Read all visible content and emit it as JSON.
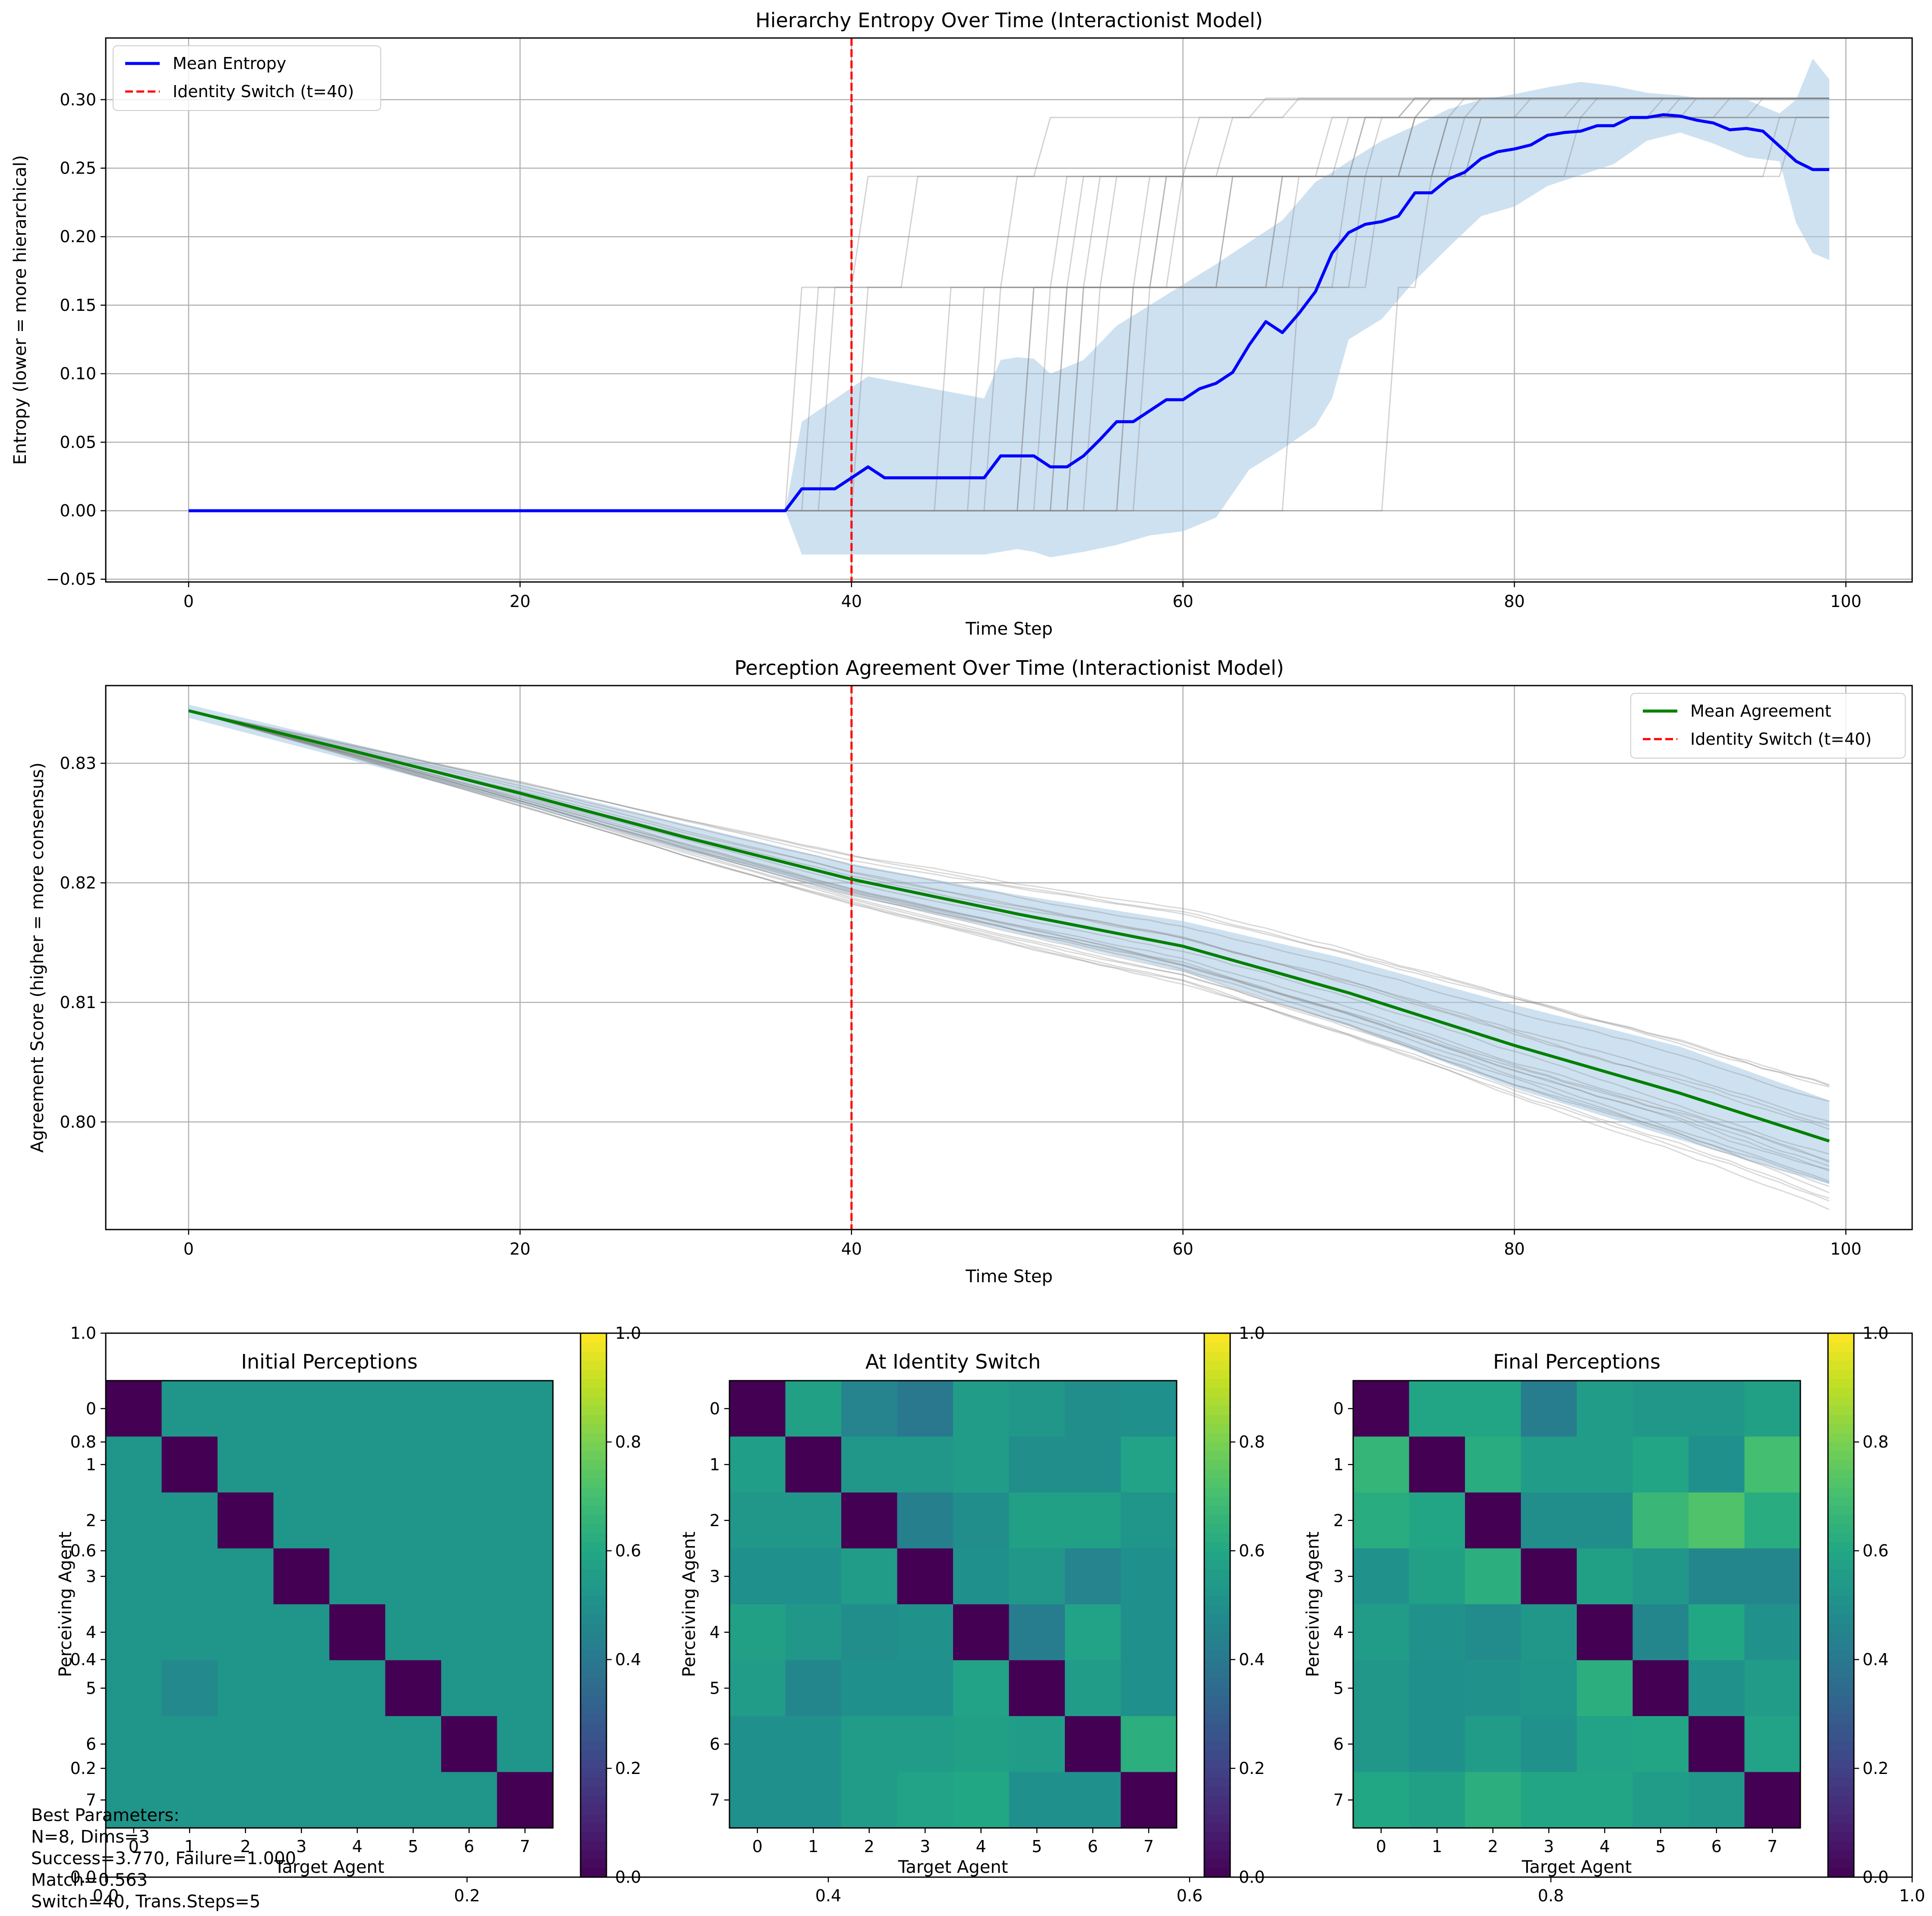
{
  "chart_data": [
    {
      "type": "line",
      "title": "Hierarchy Entropy Over Time (Interactionist Model)",
      "xlabel": "Time Step",
      "ylabel": "Entropy (lower = more hierarchical)",
      "xlim": [
        -5,
        104
      ],
      "ylim": [
        -0.052,
        0.345
      ],
      "xticks": [
        "0",
        "20",
        "40",
        "60",
        "80",
        "100"
      ],
      "yticks": [
        "-0.05",
        "0.00",
        "0.05",
        "0.10",
        "0.15",
        "0.20",
        "0.25",
        "0.30"
      ],
      "grid": true,
      "legend_position": "top-left",
      "legend": [
        "Mean Entropy",
        "Identity Switch (t=40)"
      ],
      "vline": {
        "x": 40,
        "label": "Identity Switch (t=40)",
        "color": "#ff0000"
      },
      "series": [
        {
          "name": "Mean Entropy",
          "color": "#0000ff",
          "x": [
            0,
            36,
            37,
            38,
            39,
            40,
            41,
            42,
            43,
            44,
            45,
            46,
            47,
            48,
            49,
            50,
            51,
            52,
            53,
            54,
            55,
            56,
            57,
            58,
            59,
            60,
            61,
            62,
            63,
            64,
            65,
            66,
            67,
            68,
            69,
            70,
            71,
            72,
            73,
            74,
            75,
            76,
            77,
            78,
            79,
            80,
            81,
            82,
            83,
            84,
            85,
            86,
            87,
            88,
            89,
            90,
            91,
            92,
            93,
            94,
            95,
            96,
            97,
            98,
            99
          ],
          "y": [
            0.0,
            0.0,
            0.016,
            0.016,
            0.016,
            0.024,
            0.032,
            0.024,
            0.024,
            0.024,
            0.024,
            0.024,
            0.024,
            0.024,
            0.04,
            0.04,
            0.04,
            0.032,
            0.032,
            0.04,
            0.052,
            0.065,
            0.065,
            0.073,
            0.081,
            0.081,
            0.089,
            0.093,
            0.101,
            0.121,
            0.138,
            0.13,
            0.144,
            0.16,
            0.188,
            0.203,
            0.209,
            0.211,
            0.215,
            0.232,
            0.232,
            0.242,
            0.247,
            0.257,
            0.262,
            0.264,
            0.267,
            0.274,
            0.276,
            0.277,
            0.281,
            0.281,
            0.287,
            0.287,
            0.289,
            0.288,
            0.285,
            0.283,
            0.278,
            0.279,
            0.277,
            0.266,
            0.255,
            0.249,
            0.249
          ]
        }
      ],
      "band": {
        "color": "#a6c8e3",
        "x": [
          0,
          36,
          37,
          41,
          48,
          49,
          50,
          51,
          52,
          54,
          56,
          58,
          60,
          62,
          64,
          66,
          68,
          69,
          70,
          72,
          74,
          76,
          78,
          80,
          82,
          84,
          86,
          88,
          90,
          92,
          94,
          96,
          97,
          98,
          99
        ],
        "upper": [
          0.0,
          0.0,
          0.065,
          0.098,
          0.082,
          0.11,
          0.112,
          0.111,
          0.1,
          0.11,
          0.135,
          0.15,
          0.165,
          0.18,
          0.196,
          0.212,
          0.24,
          0.247,
          0.255,
          0.27,
          0.281,
          0.293,
          0.3,
          0.304,
          0.309,
          0.313,
          0.31,
          0.305,
          0.303,
          0.3,
          0.3,
          0.29,
          0.3,
          0.33,
          0.315
        ],
        "lower": [
          0.0,
          0.0,
          -0.032,
          -0.032,
          -0.032,
          -0.03,
          -0.028,
          -0.03,
          -0.034,
          -0.03,
          -0.025,
          -0.018,
          -0.015,
          -0.005,
          0.03,
          0.045,
          0.062,
          0.082,
          0.125,
          0.14,
          0.168,
          0.192,
          0.215,
          0.222,
          0.237,
          0.245,
          0.253,
          0.27,
          0.276,
          0.268,
          0.258,
          0.255,
          0.21,
          0.188,
          0.183
        ]
      }
    },
    {
      "type": "line",
      "title": "Perception Agreement Over Time (Interactionist Model)",
      "xlabel": "Time Step",
      "ylabel": "Agreement Score (higher = more consensus)",
      "xlim": [
        -5,
        104
      ],
      "ylim": [
        0.791,
        0.8365
      ],
      "xticks": [
        "0",
        "20",
        "40",
        "60",
        "80",
        "100"
      ],
      "yticks": [
        "0.80",
        "0.81",
        "0.82",
        "0.83"
      ],
      "grid": true,
      "legend_position": "top-right",
      "legend": [
        "Mean Agreement",
        "Identity Switch (t=40)"
      ],
      "vline": {
        "x": 40,
        "label": "Identity Switch (t=40)",
        "color": "#ff0000"
      },
      "series": [
        {
          "name": "Mean Agreement",
          "color": "#008000",
          "x": [
            0,
            10,
            20,
            30,
            40,
            50,
            60,
            70,
            80,
            90,
            99
          ],
          "y": [
            0.8344,
            0.831,
            0.8275,
            0.8238,
            0.8203,
            0.8174,
            0.8147,
            0.8108,
            0.8064,
            0.8024,
            0.7984
          ]
        }
      ],
      "band": {
        "color": "#a6c8e3",
        "x": [
          0,
          10,
          20,
          30,
          40,
          50,
          60,
          70,
          80,
          90,
          99
        ],
        "upper": [
          0.8349,
          0.8316,
          0.8283,
          0.8249,
          0.8216,
          0.819,
          0.8168,
          0.8136,
          0.8098,
          0.8063,
          0.8018
        ],
        "lower": [
          0.8338,
          0.8302,
          0.8266,
          0.8227,
          0.819,
          0.8158,
          0.8126,
          0.808,
          0.8028,
          0.7985,
          0.7948
        ]
      }
    },
    {
      "type": "heatmap",
      "title": "Initial Perceptions",
      "xlabel": "Target Agent",
      "ylabel": "Perceiving Agent",
      "ticks": [
        "0",
        "1",
        "2",
        "3",
        "4",
        "5",
        "6",
        "7"
      ],
      "colorbar": {
        "min": 0.0,
        "max": 1.0,
        "ticks": [
          "0.0",
          "0.2",
          "0.4",
          "0.6",
          "0.8",
          "1.0"
        ],
        "colormap": "viridis"
      },
      "values": [
        [
          0.0,
          0.52,
          0.52,
          0.52,
          0.52,
          0.52,
          0.52,
          0.52
        ],
        [
          0.52,
          0.0,
          0.52,
          0.52,
          0.52,
          0.52,
          0.52,
          0.52
        ],
        [
          0.52,
          0.52,
          0.0,
          0.52,
          0.52,
          0.52,
          0.52,
          0.52
        ],
        [
          0.52,
          0.52,
          0.52,
          0.0,
          0.52,
          0.52,
          0.52,
          0.52
        ],
        [
          0.52,
          0.52,
          0.52,
          0.52,
          0.0,
          0.52,
          0.52,
          0.52
        ],
        [
          0.52,
          0.47,
          0.52,
          0.52,
          0.52,
          0.0,
          0.52,
          0.52
        ],
        [
          0.52,
          0.52,
          0.52,
          0.52,
          0.52,
          0.52,
          0.0,
          0.52
        ],
        [
          0.52,
          0.52,
          0.52,
          0.52,
          0.52,
          0.52,
          0.52,
          0.0
        ]
      ]
    },
    {
      "type": "heatmap",
      "title": "At Identity Switch",
      "xlabel": "Target Agent",
      "ylabel": "Perceiving Agent",
      "ticks": [
        "0",
        "1",
        "2",
        "3",
        "4",
        "5",
        "6",
        "7"
      ],
      "colorbar": {
        "min": 0.0,
        "max": 1.0,
        "ticks": [
          "0.0",
          "0.2",
          "0.4",
          "0.6",
          "0.8",
          "1.0"
        ],
        "colormap": "viridis"
      },
      "values": [
        [
          0.0,
          0.57,
          0.45,
          0.4,
          0.55,
          0.53,
          0.49,
          0.5
        ],
        [
          0.56,
          0.0,
          0.53,
          0.53,
          0.55,
          0.49,
          0.49,
          0.58
        ],
        [
          0.53,
          0.53,
          0.0,
          0.43,
          0.49,
          0.57,
          0.57,
          0.52
        ],
        [
          0.5,
          0.5,
          0.55,
          0.0,
          0.5,
          0.53,
          0.45,
          0.5
        ],
        [
          0.57,
          0.53,
          0.49,
          0.51,
          0.0,
          0.42,
          0.58,
          0.5
        ],
        [
          0.55,
          0.46,
          0.5,
          0.5,
          0.58,
          0.0,
          0.55,
          0.5
        ],
        [
          0.5,
          0.5,
          0.55,
          0.55,
          0.57,
          0.55,
          0.0,
          0.63
        ],
        [
          0.5,
          0.5,
          0.55,
          0.58,
          0.6,
          0.5,
          0.5,
          0.0
        ]
      ]
    },
    {
      "type": "heatmap",
      "title": "Final Perceptions",
      "xlabel": "Target Agent",
      "ylabel": "Perceiving Agent",
      "ticks": [
        "0",
        "1",
        "2",
        "3",
        "4",
        "5",
        "6",
        "7"
      ],
      "colorbar": {
        "min": 0.0,
        "max": 1.0,
        "ticks": [
          "0.0",
          "0.2",
          "0.4",
          "0.6",
          "0.8",
          "1.0"
        ],
        "colormap": "viridis"
      },
      "values": [
        [
          0.0,
          0.59,
          0.59,
          0.42,
          0.55,
          0.53,
          0.53,
          0.57
        ],
        [
          0.66,
          0.0,
          0.62,
          0.55,
          0.55,
          0.59,
          0.5,
          0.7
        ],
        [
          0.62,
          0.59,
          0.0,
          0.49,
          0.49,
          0.67,
          0.72,
          0.62
        ],
        [
          0.51,
          0.57,
          0.63,
          0.0,
          0.57,
          0.53,
          0.46,
          0.46
        ],
        [
          0.55,
          0.51,
          0.48,
          0.53,
          0.0,
          0.46,
          0.6,
          0.51
        ],
        [
          0.53,
          0.5,
          0.51,
          0.52,
          0.63,
          0.0,
          0.51,
          0.55
        ],
        [
          0.53,
          0.5,
          0.55,
          0.51,
          0.58,
          0.59,
          0.0,
          0.58
        ],
        [
          0.6,
          0.57,
          0.63,
          0.59,
          0.59,
          0.55,
          0.53,
          0.0
        ]
      ]
    }
  ],
  "background_axes": {
    "xticks": [
      "0.0",
      "0.2",
      "0.4",
      "0.6",
      "0.8",
      "1.0"
    ],
    "yticks": [
      "0.0",
      "0.2",
      "0.4",
      "0.6",
      "0.8",
      "1.0"
    ]
  },
  "parameters_text": [
    "Best Parameters:",
    "N=8, Dims=3",
    "Success=3.770, Failure=1.000",
    "Match=0.563",
    "Switch=40, Trans.Steps=5"
  ]
}
